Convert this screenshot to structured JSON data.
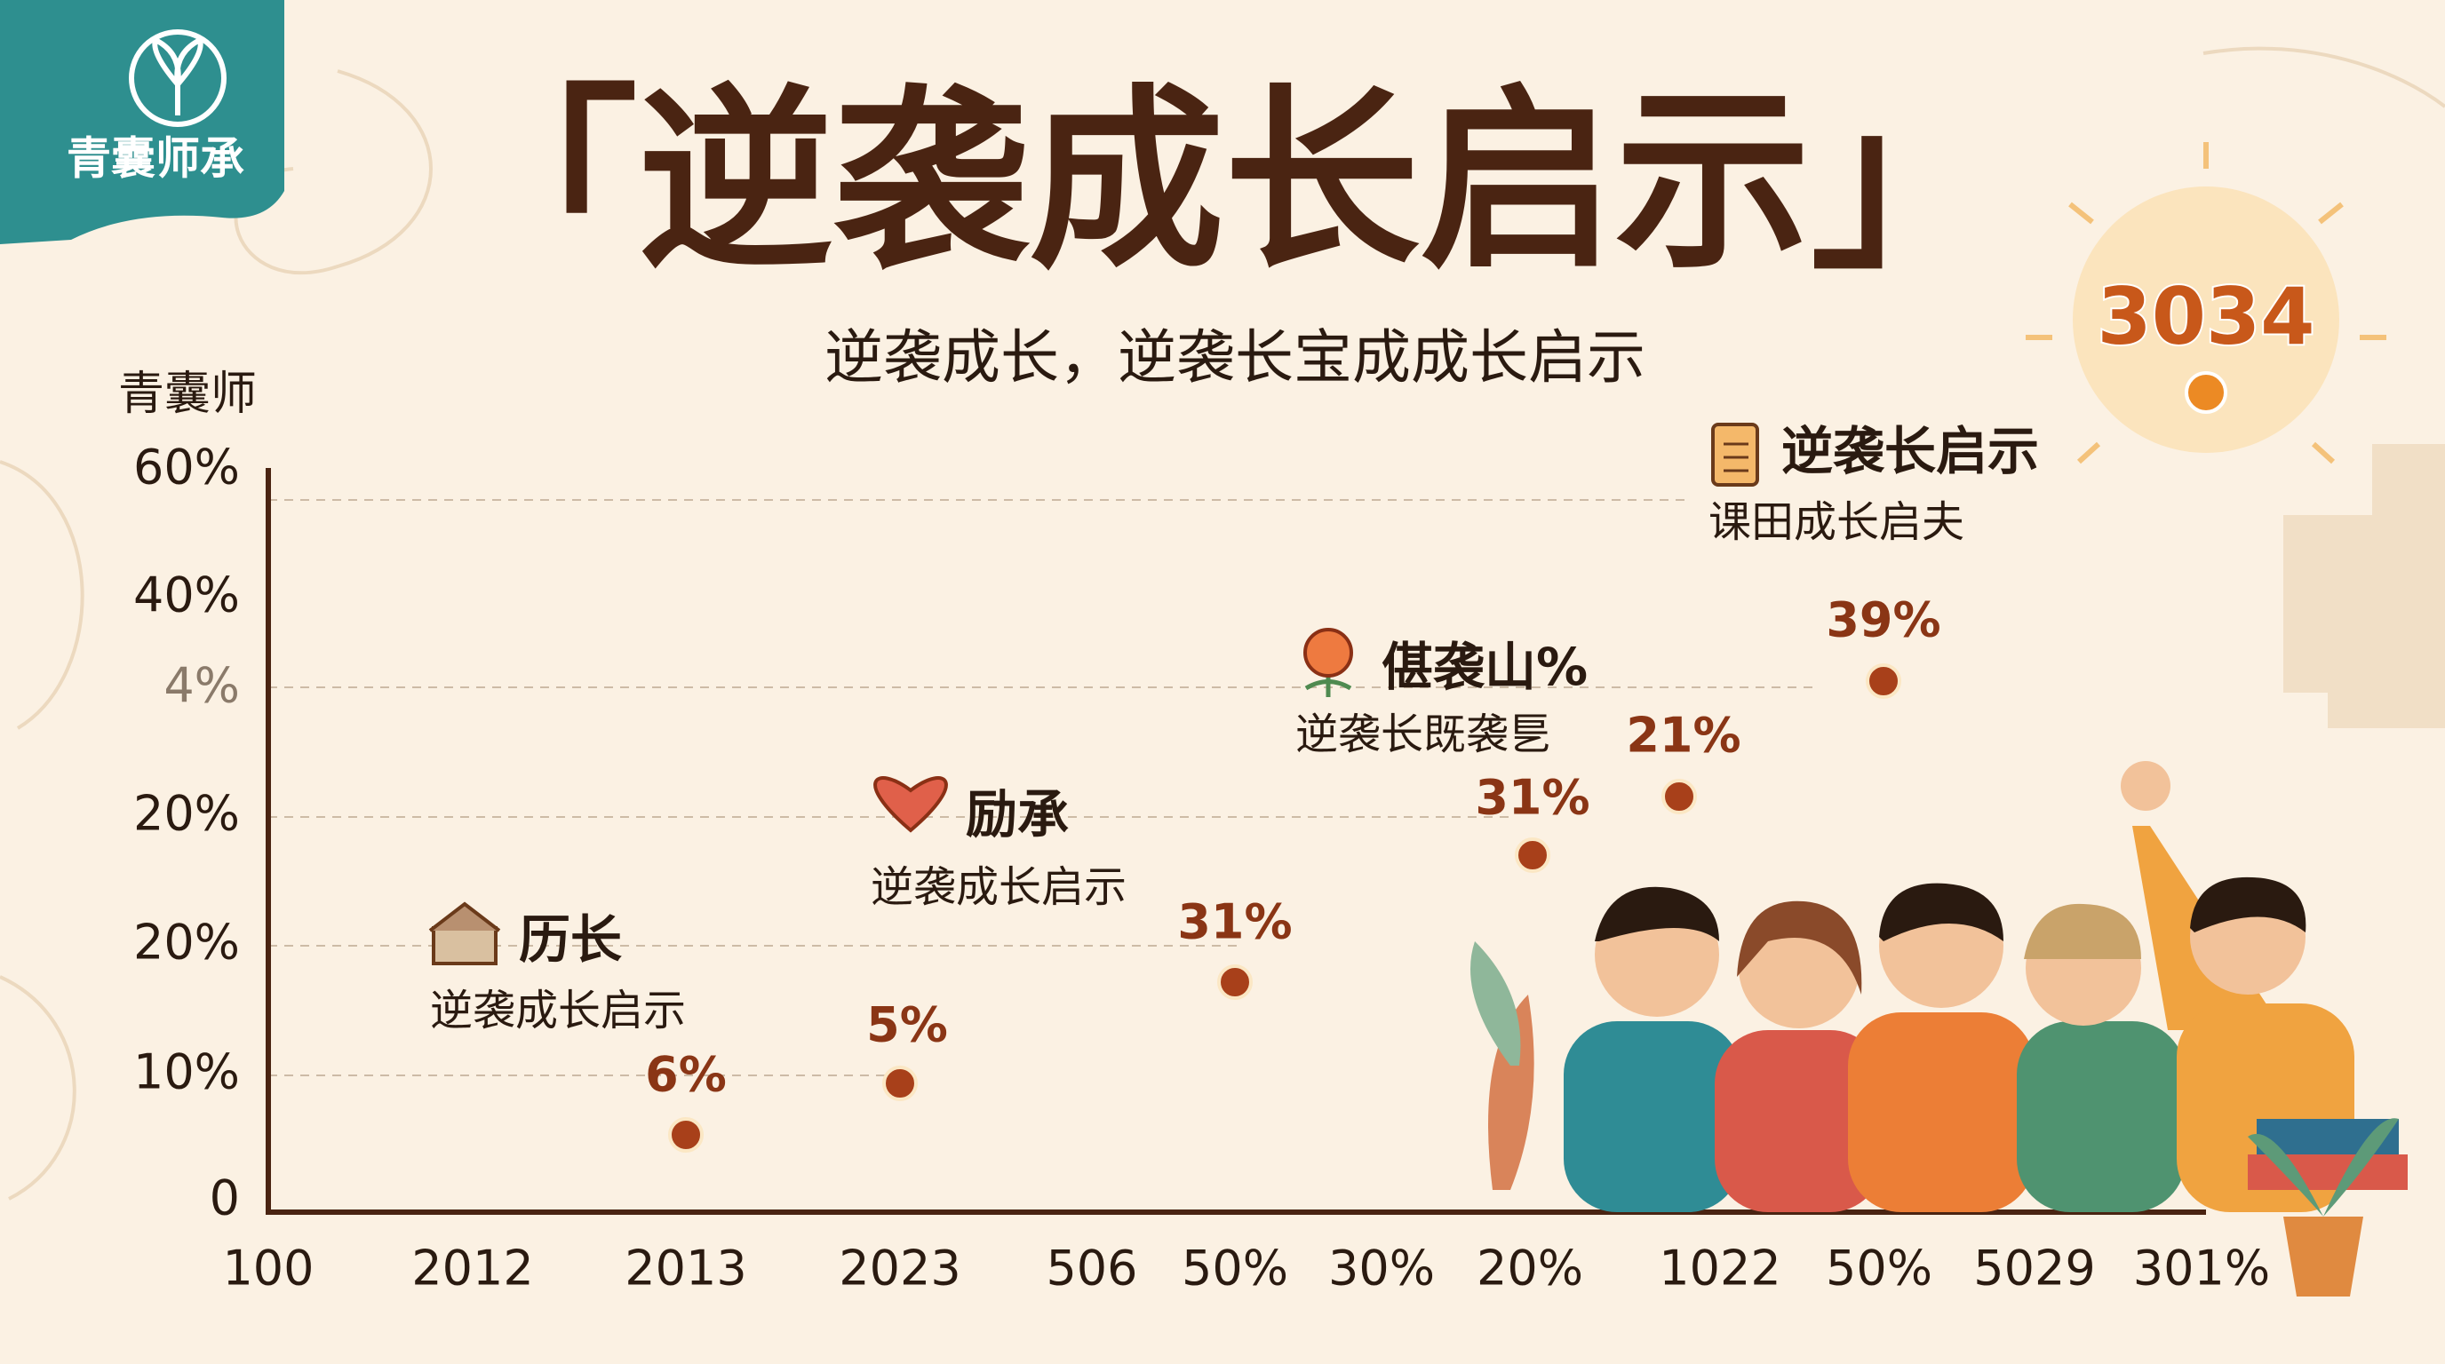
{
  "logo": {
    "text": "青囊师承"
  },
  "header": {
    "title": "「逆袭成长启示」",
    "subtitle": "逆袭成长，逆袭长宝成成长启示"
  },
  "axis": {
    "y_title": "青囊师",
    "y_labels": [
      "60%",
      "40%",
      "4%",
      "20%",
      "20%",
      "10%",
      "0"
    ],
    "x_labels": [
      "100",
      "2012",
      "2013",
      "2023",
      "506",
      "50%",
      "30%",
      "20%",
      "1022",
      "50%",
      "5029",
      "301%"
    ]
  },
  "points": [
    {
      "label": "6%"
    },
    {
      "label": "5%"
    },
    {
      "label": "31%"
    },
    {
      "label": "31%"
    },
    {
      "label": "21%"
    },
    {
      "label": "39%"
    }
  ],
  "peak": {
    "label": "3034"
  },
  "annotations": [
    {
      "title": "历长",
      "text": "逆袭成长启示"
    },
    {
      "title": "励承",
      "text": "逆袭成长启示"
    },
    {
      "title": "偡袭山%",
      "text": "逆袭长既袭乬"
    },
    {
      "title": "逆袭长启示",
      "text": "课田成长启夫"
    }
  ]
}
